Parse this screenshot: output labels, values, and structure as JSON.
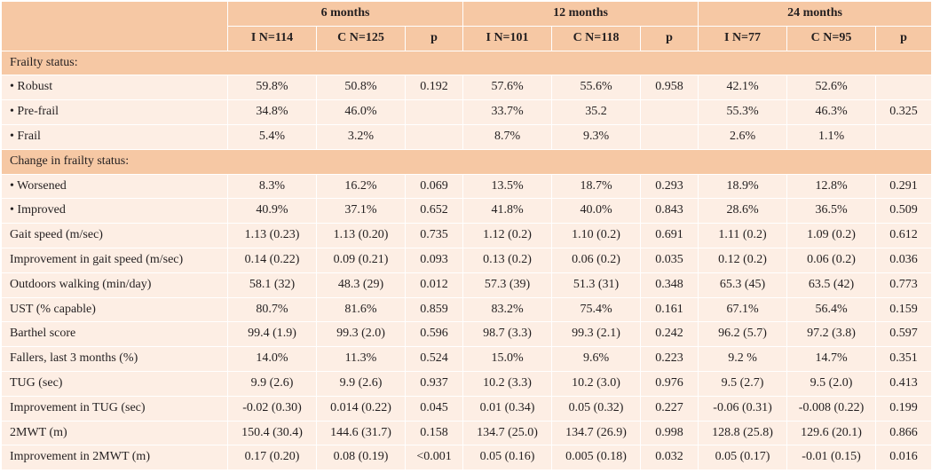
{
  "header": {
    "groups": [
      "6 months",
      "12 months",
      "24 months"
    ],
    "subcols": [
      "I N=114",
      "C N=125",
      "p",
      "I N=101",
      "C N=118",
      "p",
      "I N=77",
      "C N=95",
      "p"
    ]
  },
  "sections": {
    "frailty_status": "Frailty status:",
    "change_in_frailty": "Change in frailty status:"
  },
  "rows": {
    "robust": [
      "• Robust",
      "59.8%",
      "50.8%",
      "0.192",
      "57.6%",
      "55.6%",
      "0.958",
      "42.1%",
      "52.6%",
      ""
    ],
    "prefrail": [
      "• Pre-frail",
      "34.8%",
      "46.0%",
      "",
      "33.7%",
      "35.2",
      "",
      "55.3%",
      "46.3%",
      "0.325"
    ],
    "frail": [
      "• Frail",
      "5.4%",
      "3.2%",
      "",
      "8.7%",
      "9.3%",
      "",
      "2.6%",
      "1.1%",
      ""
    ],
    "worsened": [
      "• Worsened",
      "8.3%",
      "16.2%",
      "0.069",
      "13.5%",
      "18.7%",
      "0.293",
      "18.9%",
      "12.8%",
      "0.291"
    ],
    "improved": [
      "• Improved",
      "40.9%",
      "37.1%",
      "0.652",
      "41.8%",
      "40.0%",
      "0.843",
      "28.6%",
      "36.5%",
      "0.509"
    ],
    "gait_speed": [
      "Gait speed (m/sec)",
      "1.13 (0.23)",
      "1.13 (0.20)",
      "0.735",
      "1.12 (0.2)",
      "1.10 (0.2)",
      "0.691",
      "1.11 (0.2)",
      "1.09 (0.2)",
      "0.612"
    ],
    "gait_improve": [
      "Improvement in gait speed (m/sec)",
      "0.14 (0.22)",
      "0.09 (0.21)",
      "0.093",
      "0.13 (0.2)",
      "0.06 (0.2)",
      "0.035",
      "0.12 (0.2)",
      "0.06 (0.2)",
      "0.036"
    ],
    "outdoors": [
      "Outdoors walking (min/day)",
      "58.1 (32)",
      "48.3 (29)",
      "0.012",
      "57.3 (39)",
      "51.3 (31)",
      "0.348",
      "65.3 (45)",
      "63.5 (42)",
      "0.773"
    ],
    "ust": [
      "UST (% capable)",
      "80.7%",
      "81.6%",
      "0.859",
      "83.2%",
      "75.4%",
      "0.161",
      "67.1%",
      "56.4%",
      "0.159"
    ],
    "barthel": [
      "Barthel score",
      "99.4 (1.9)",
      "99.3 (2.0)",
      "0.596",
      "98.7 (3.3)",
      "99.3 (2.1)",
      "0.242",
      "96.2 (5.7)",
      "97.2 (3.8)",
      "0.597"
    ],
    "fallers": [
      "Fallers, last 3 months (%)",
      "14.0%",
      "11.3%",
      "0.524",
      "15.0%",
      "9.6%",
      "0.223",
      "9.2 %",
      "14.7%",
      "0.351"
    ],
    "tug": [
      "TUG (sec)",
      "9.9 (2.6)",
      "9.9 (2.6)",
      "0.937",
      "10.2 (3.3)",
      "10.2 (3.0)",
      "0.976",
      "9.5 (2.7)",
      "9.5 (2.0)",
      "0.413"
    ],
    "tug_improve": [
      "Improvement in TUG (sec)",
      "-0.02 (0.30)",
      "0.014 (0.22)",
      "0.045",
      "0.01 (0.34)",
      "0.05 (0.32)",
      "0.227",
      "-0.06 (0.31)",
      "-0.008 (0.22)",
      "0.199"
    ],
    "mwt": [
      "2MWT (m)",
      "150.4 (30.4)",
      "144.6 (31.7)",
      "0.158",
      "134.7 (25.0)",
      "134.7 (26.9)",
      "0.998",
      "128.8 (25.8)",
      "129.6 (20.1)",
      "0.866"
    ],
    "mwt_improve": [
      "Improvement in 2MWT (m)",
      "0.17 (0.20)",
      "0.08 (0.19)",
      "<0.001",
      "0.05 (0.16)",
      "0.005 (0.18)",
      "0.032",
      "0.05 (0.17)",
      "-0.01 (0.15)",
      "0.016"
    ]
  }
}
